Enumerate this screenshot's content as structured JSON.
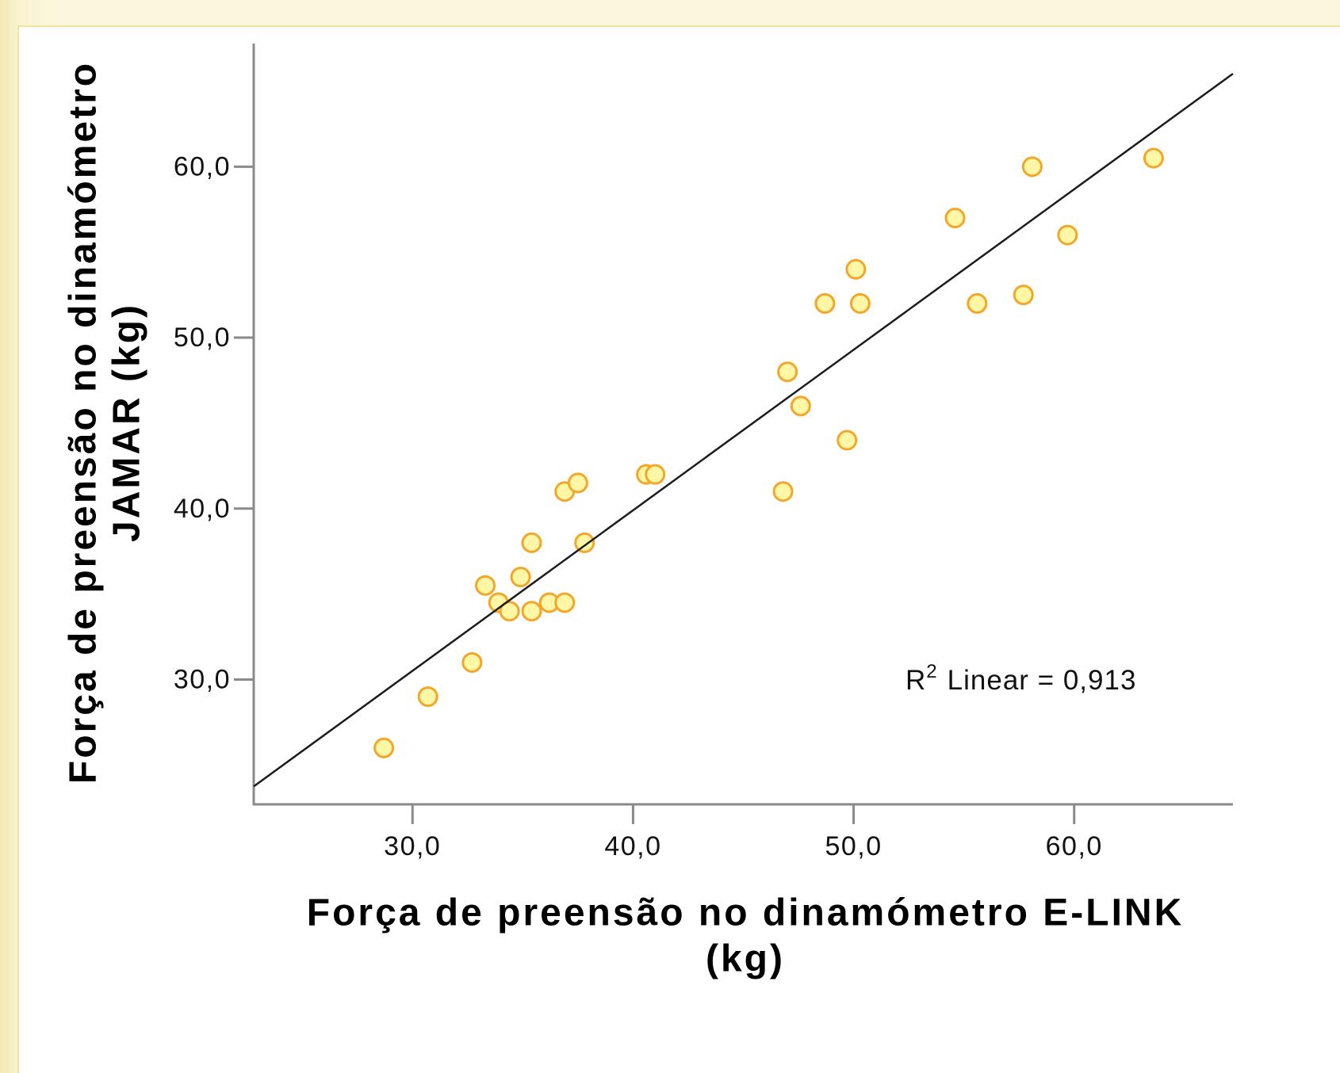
{
  "chart_data": {
    "type": "scatter",
    "x": [
      28.7,
      30.7,
      32.7,
      33.3,
      33.9,
      34.4,
      34.9,
      35.4,
      35.4,
      36.2,
      36.9,
      36.9,
      37.5,
      37.8,
      40.6,
      41.0,
      46.8,
      47.0,
      47.6,
      48.7,
      49.7,
      50.1,
      50.3,
      54.6,
      55.6,
      57.7,
      58.1,
      59.7,
      63.6
    ],
    "y": [
      26.0,
      29.0,
      31.0,
      35.5,
      34.5,
      34.0,
      36.0,
      34.0,
      38.0,
      34.5,
      34.5,
      41.0,
      41.5,
      38.0,
      42.0,
      42.0,
      41.0,
      48.0,
      46.0,
      52.0,
      44.0,
      54.0,
      52.0,
      57.0,
      52.0,
      52.5,
      60.0,
      56.0,
      60.5
    ],
    "xlabel_lines": [
      "Força de preensão no dinamómetro E-LINK",
      "(kg)"
    ],
    "ylabel_lines": [
      "Força de preensão no dinamómetro",
      "JAMAR (kg)"
    ],
    "xlim": [
      22.8,
      67.2
    ],
    "ylim": [
      22.7,
      67.2
    ],
    "x_ticks": {
      "values": [
        30,
        40,
        50,
        60
      ],
      "labels": [
        "30,0",
        "40,0",
        "50,0",
        "60,0"
      ]
    },
    "y_ticks": {
      "values": [
        30,
        40,
        50,
        60
      ],
      "labels": [
        "30,0",
        "40,0",
        "50,0",
        "60,0"
      ]
    },
    "fit_line": {
      "type": "linear",
      "intercept": 2.34,
      "slope": 0.939
    },
    "annotation": {
      "base": "R",
      "superscript": "2",
      "text": "Linear = 0,913"
    },
    "grid": false,
    "legend": "none",
    "colors": {
      "marker_fill": "#fff7a6",
      "marker_stroke": "#f4a62a",
      "fit_line": "#1c1c1c",
      "axis": "#8a8a8a"
    }
  }
}
